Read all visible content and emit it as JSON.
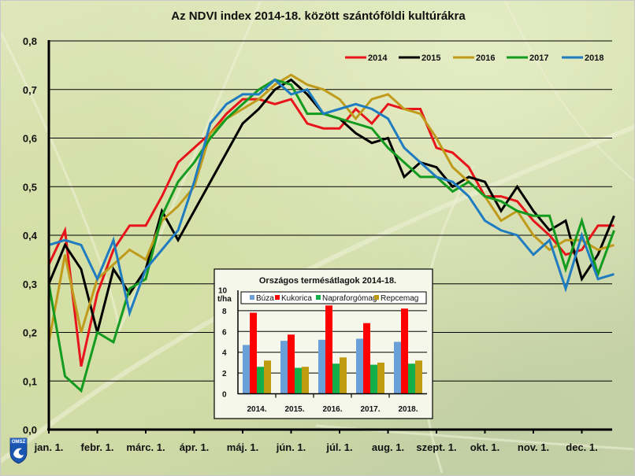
{
  "chart_data": [
    {
      "type": "line",
      "title": "Az NDVI index 2014-18. között szántóföldi kultúrákra",
      "xlabel": "",
      "ylabel": "",
      "ylim": [
        0,
        0.8
      ],
      "yticks": [
        "0,0",
        "0,1",
        "0,2",
        "0,3",
        "0,4",
        "0,5",
        "0,6",
        "0,7",
        "0,8"
      ],
      "ytick_values": [
        0,
        0.1,
        0.2,
        0.3,
        0.4,
        0.5,
        0.6,
        0.7,
        0.8
      ],
      "xticks": [
        "jan. 1.",
        "febr. 1.",
        "márc. 1.",
        "ápr. 1.",
        "máj. 1.",
        "jún. 1.",
        "júl. 1.",
        "aug. 1.",
        "szept. 1.",
        "okt. 1.",
        "nov. 1.",
        "dec. 1."
      ],
      "x_unit": "dekad of year (0 = jan. 1., 3 per month)",
      "grid": "horizontal",
      "legend": "top-right",
      "series": [
        {
          "name": "2014",
          "color": "#e8141b",
          "values": [
            0.34,
            0.41,
            0.13,
            0.28,
            0.37,
            0.42,
            0.42,
            0.48,
            0.55,
            0.58,
            0.61,
            0.65,
            0.68,
            0.68,
            0.67,
            0.68,
            0.63,
            0.62,
            0.62,
            0.66,
            0.63,
            0.67,
            0.66,
            0.66,
            0.58,
            0.57,
            0.54,
            0.48,
            0.48,
            0.47,
            0.43,
            0.4,
            0.36,
            0.37,
            0.42,
            0.42
          ]
        },
        {
          "name": "2015",
          "color": "#000000",
          "values": [
            0.3,
            0.38,
            0.33,
            0.2,
            0.33,
            0.28,
            0.33,
            0.45,
            0.39,
            0.45,
            0.51,
            0.57,
            0.63,
            0.66,
            0.7,
            0.72,
            0.69,
            0.65,
            0.64,
            0.61,
            0.59,
            0.6,
            0.52,
            0.55,
            0.54,
            0.5,
            0.52,
            0.51,
            0.45,
            0.5,
            0.45,
            0.41,
            0.43,
            0.31,
            0.36,
            0.44
          ]
        },
        {
          "name": "2016",
          "color": "#c09a1a",
          "values": [
            0.18,
            0.36,
            0.2,
            0.31,
            0.34,
            0.37,
            0.35,
            0.43,
            0.46,
            0.5,
            0.61,
            0.64,
            0.66,
            0.68,
            0.71,
            0.73,
            0.71,
            0.7,
            0.68,
            0.64,
            0.68,
            0.69,
            0.66,
            0.65,
            0.6,
            0.54,
            0.51,
            0.48,
            0.43,
            0.45,
            0.4,
            0.37,
            0.39,
            0.39,
            0.37,
            0.38
          ]
        },
        {
          "name": "2017",
          "color": "#129b1e",
          "values": [
            0.3,
            0.11,
            0.08,
            0.2,
            0.18,
            0.29,
            0.31,
            0.44,
            0.51,
            0.55,
            0.6,
            0.64,
            0.67,
            0.7,
            0.72,
            0.71,
            0.65,
            0.65,
            0.64,
            0.63,
            0.62,
            0.58,
            0.55,
            0.52,
            0.52,
            0.49,
            0.51,
            0.48,
            0.47,
            0.45,
            0.44,
            0.44,
            0.33,
            0.43,
            0.32,
            0.41
          ]
        },
        {
          "name": "2018",
          "color": "#1f7cc0",
          "values": [
            0.38,
            0.39,
            0.38,
            0.31,
            0.39,
            0.24,
            0.33,
            0.37,
            0.41,
            0.51,
            0.63,
            0.67,
            0.69,
            0.69,
            0.72,
            0.69,
            0.7,
            0.65,
            0.66,
            0.67,
            0.66,
            0.64,
            0.58,
            0.55,
            0.52,
            0.51,
            0.48,
            0.43,
            0.41,
            0.4,
            0.36,
            0.39,
            0.29,
            0.4,
            0.31,
            0.32
          ]
        }
      ]
    },
    {
      "type": "bar",
      "title": "Országos termésátlagok 2014-18.",
      "ylabel": "t/ha",
      "ylim": [
        0,
        10
      ],
      "yticks": [
        "0",
        "2",
        "4",
        "6",
        "8",
        "10"
      ],
      "ytick_values": [
        0,
        2,
        4,
        6,
        8,
        10
      ],
      "categories": [
        "2014.",
        "2015.",
        "2016.",
        "2017.",
        "2018."
      ],
      "legend": "top",
      "series": [
        {
          "name": "Búza",
          "color": "#6a9fd8",
          "values": [
            4.7,
            5.1,
            5.2,
            5.3,
            5.0
          ]
        },
        {
          "name": "Kukorica",
          "color": "#ff0000",
          "values": [
            7.8,
            5.7,
            8.5,
            6.8,
            8.2
          ]
        },
        {
          "name": "Napraforgómag",
          "color": "#13b04a",
          "values": [
            2.6,
            2.5,
            2.9,
            2.8,
            2.9
          ]
        },
        {
          "name": "Repcemag",
          "color": "#bf9b10",
          "values": [
            3.2,
            2.6,
            3.5,
            3.0,
            3.2
          ]
        }
      ]
    }
  ],
  "logo": {
    "text": "OMSZ"
  }
}
